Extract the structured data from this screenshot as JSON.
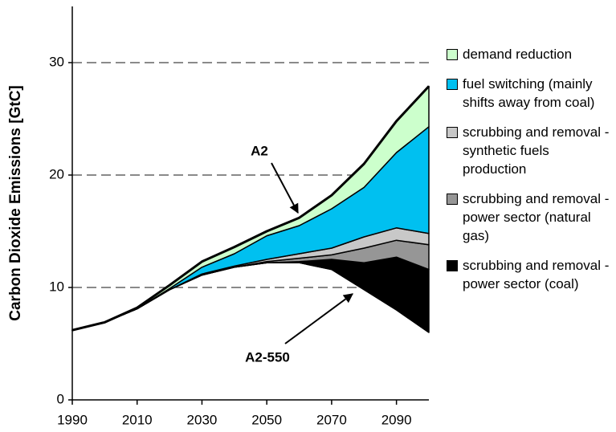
{
  "chart_data": {
    "type": "stacked_area",
    "y_label": "Carbon Dioxide Emissions [GtC]",
    "x": [
      1990,
      2000,
      2010,
      2020,
      2030,
      2040,
      2050,
      2060,
      2070,
      2080,
      2090,
      2100
    ],
    "xlim": [
      1990,
      2100
    ],
    "xticks": [
      1990,
      2010,
      2030,
      2050,
      2070,
      2090
    ],
    "ylim": [
      0,
      35
    ],
    "yticks": [
      0,
      10,
      20,
      30
    ],
    "grid": true,
    "legend": "right",
    "base": {
      "name": "A2-550",
      "values": [
        6.2,
        6.9,
        8.1,
        9.8,
        11.1,
        11.8,
        12.2,
        12.2,
        11.6,
        9.8,
        8.0,
        6.0
      ]
    },
    "top_label": "A2",
    "series": [
      {
        "name": "scrubbing and removal - power sector (coal)",
        "color": "#000000",
        "values": [
          0,
          0,
          0,
          0,
          0,
          0,
          0,
          0.1,
          0.9,
          2.4,
          4.7,
          5.6
        ]
      },
      {
        "name": "scrubbing and removal - power sector (natural gas)",
        "color": "#969696",
        "values": [
          0,
          0,
          0,
          0,
          0,
          0,
          0.1,
          0.3,
          0.4,
          1.3,
          1.5,
          2.2
        ]
      },
      {
        "name": "scrubbing and removal - synthetic fuels production",
        "color": "#c8c8c8",
        "values": [
          0,
          0,
          0,
          0,
          0.1,
          0.1,
          0.2,
          0.4,
          0.6,
          1.0,
          1.1,
          1.0
        ]
      },
      {
        "name": "fuel switching (mainly shifts away from coal)",
        "color": "#00c0f0",
        "values": [
          0,
          0,
          0,
          0.1,
          0.6,
          1.1,
          2.1,
          2.5,
          3.5,
          4.4,
          6.7,
          9.5
        ]
      },
      {
        "name": "demand reduction",
        "color": "#ccffcc",
        "values": [
          0,
          0,
          0.1,
          0.3,
          0.5,
          0.6,
          0.4,
          0.7,
          1.2,
          2.1,
          2.8,
          3.6
        ]
      }
    ]
  }
}
